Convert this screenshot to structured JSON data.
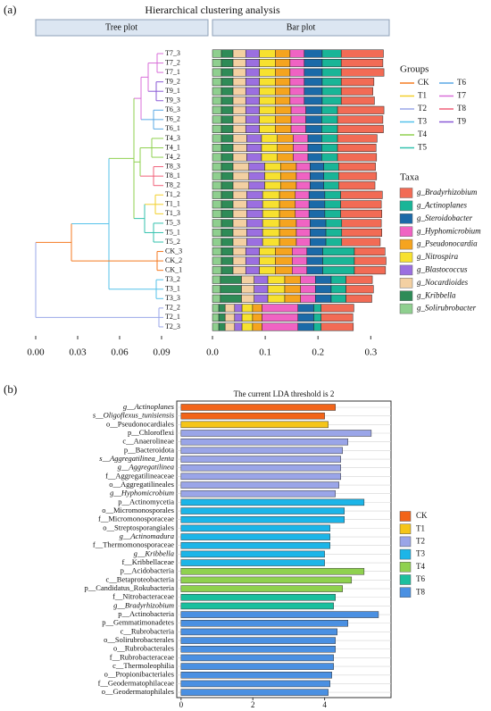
{
  "chart_data": [
    {
      "type": "stacked_barh",
      "panel": "(a)",
      "title": "Hierarchical clustering analysis",
      "tree_title": "Tree plot",
      "bar_title": "Bar plot",
      "categories": [
        "T7_3",
        "T7_2",
        "T7_1",
        "T9_2",
        "T9_1",
        "T9_3",
        "T6_3",
        "T6_2",
        "T6_1",
        "T4_3",
        "T4_1",
        "T4_2",
        "T8_3",
        "T8_1",
        "T8_2",
        "T1_2",
        "T1_1",
        "T1_3",
        "T5_3",
        "T5_1",
        "T5_2",
        "CK_3",
        "CK_2",
        "CK_1",
        "T3_2",
        "T3_1",
        "T3_3",
        "T2_2",
        "T2_1",
        "T2_3"
      ],
      "legend_title": "Taxa",
      "series": [
        {
          "name": "g_Bradyrhizobium",
          "color": "#f26b55",
          "values": [
            0.08,
            0.079,
            0.081,
            0.062,
            0.06,
            0.063,
            0.088,
            0.086,
            0.087,
            0.075,
            0.073,
            0.074,
            0.07,
            0.072,
            0.069,
            0.079,
            0.077,
            0.078,
            0.075,
            0.076,
            0.073,
            0.058,
            0.06,
            0.059,
            0.05,
            0.052,
            0.049,
            0.062,
            0.06,
            0.061
          ]
        },
        {
          "name": "g_Actinoplanes",
          "color": "#19b597",
          "values": [
            0.036,
            0.036,
            0.036,
            0.036,
            0.036,
            0.036,
            0.03,
            0.03,
            0.03,
            0.03,
            0.03,
            0.03,
            0.028,
            0.028,
            0.028,
            0.03,
            0.03,
            0.03,
            0.03,
            0.03,
            0.03,
            0.06,
            0.06,
            0.06,
            0.028,
            0.028,
            0.028,
            0.014,
            0.014,
            0.014
          ]
        },
        {
          "name": "g_Steroidobacter",
          "color": "#1b6aa8",
          "values": [
            0.034,
            0.034,
            0.034,
            0.034,
            0.034,
            0.034,
            0.03,
            0.03,
            0.03,
            0.026,
            0.026,
            0.026,
            0.026,
            0.026,
            0.026,
            0.03,
            0.03,
            0.03,
            0.03,
            0.03,
            0.03,
            0.03,
            0.03,
            0.03,
            0.03,
            0.03,
            0.03,
            0.03,
            0.03,
            0.03
          ]
        },
        {
          "name": "g_Hyphomicrobium",
          "color": "#f063c3",
          "values": [
            0.027,
            0.027,
            0.027,
            0.027,
            0.027,
            0.027,
            0.028,
            0.028,
            0.028,
            0.028,
            0.028,
            0.028,
            0.026,
            0.026,
            0.026,
            0.026,
            0.026,
            0.026,
            0.026,
            0.026,
            0.026,
            0.028,
            0.028,
            0.028,
            0.028,
            0.028,
            0.028,
            0.068,
            0.068,
            0.068
          ]
        },
        {
          "name": "g_Pseudonocardia",
          "color": "#f5a41f",
          "values": [
            0.028,
            0.028,
            0.028,
            0.028,
            0.028,
            0.028,
            0.03,
            0.03,
            0.03,
            0.03,
            0.03,
            0.03,
            0.03,
            0.03,
            0.03,
            0.03,
            0.03,
            0.03,
            0.032,
            0.032,
            0.032,
            0.032,
            0.032,
            0.032,
            0.03,
            0.03,
            0.03,
            0.018,
            0.018,
            0.018
          ]
        },
        {
          "name": "g_Nitrospira",
          "color": "#f7e12f",
          "values": [
            0.03,
            0.03,
            0.03,
            0.03,
            0.03,
            0.03,
            0.03,
            0.03,
            0.03,
            0.03,
            0.03,
            0.03,
            0.03,
            0.03,
            0.03,
            0.032,
            0.032,
            0.032,
            0.032,
            0.032,
            0.032,
            0.03,
            0.03,
            0.03,
            0.032,
            0.032,
            0.032,
            0.02,
            0.02,
            0.02
          ]
        },
        {
          "name": "g_Blastococcus",
          "color": "#9b6fe0",
          "values": [
            0.026,
            0.026,
            0.026,
            0.026,
            0.026,
            0.026,
            0.026,
            0.026,
            0.026,
            0.028,
            0.028,
            0.028,
            0.03,
            0.03,
            0.03,
            0.03,
            0.03,
            0.03,
            0.03,
            0.03,
            0.03,
            0.026,
            0.026,
            0.026,
            0.026,
            0.026,
            0.026,
            0.014,
            0.014,
            0.014
          ]
        },
        {
          "name": "g_Nocardioides",
          "color": "#f3d0a2",
          "values": [
            0.024,
            0.024,
            0.024,
            0.024,
            0.024,
            0.024,
            0.024,
            0.024,
            0.024,
            0.026,
            0.026,
            0.026,
            0.03,
            0.03,
            0.03,
            0.026,
            0.026,
            0.026,
            0.026,
            0.026,
            0.026,
            0.024,
            0.024,
            0.024,
            0.024,
            0.024,
            0.024,
            0.018,
            0.018,
            0.018
          ]
        },
        {
          "name": "g_Kribbella",
          "color": "#2e8b57",
          "values": [
            0.022,
            0.022,
            0.022,
            0.022,
            0.022,
            0.022,
            0.022,
            0.022,
            0.022,
            0.022,
            0.022,
            0.022,
            0.022,
            0.022,
            0.022,
            0.022,
            0.022,
            0.022,
            0.022,
            0.022,
            0.022,
            0.022,
            0.022,
            0.022,
            0.04,
            0.04,
            0.04,
            0.012,
            0.012,
            0.012
          ]
        },
        {
          "name": "g_Solirubrobacter",
          "color": "#8fcf8f",
          "values": [
            0.017,
            0.017,
            0.017,
            0.017,
            0.017,
            0.017,
            0.017,
            0.017,
            0.017,
            0.017,
            0.017,
            0.017,
            0.017,
            0.017,
            0.017,
            0.017,
            0.017,
            0.017,
            0.017,
            0.017,
            0.017,
            0.017,
            0.017,
            0.017,
            0.015,
            0.015,
            0.015,
            0.012,
            0.012,
            0.012
          ]
        }
      ],
      "xlim": [
        0,
        0.335
      ],
      "xticks": [
        {
          "value": 0,
          "label": "0.0"
        },
        0.1,
        0.2,
        0.3
      ],
      "tree_xlim": [
        0,
        0.0913
      ],
      "tree_xticks": [
        {
          "value": 0,
          "label": "0.00"
        },
        0.03,
        0.06,
        0.09
      ],
      "groups_title": "Groups",
      "groups": [
        {
          "name": "CK",
          "color": "#f47a20"
        },
        {
          "name": "T1",
          "color": "#f2cf2a"
        },
        {
          "name": "T2",
          "color": "#9aa7e8"
        },
        {
          "name": "T3",
          "color": "#55c2ea"
        },
        {
          "name": "T4",
          "color": "#8fd14f"
        },
        {
          "name": "T5",
          "color": "#33c2ae"
        },
        {
          "name": "T6",
          "color": "#5aa9e6"
        },
        {
          "name": "T7",
          "color": "#d86fd8"
        },
        {
          "name": "T8",
          "color": "#f0607a"
        },
        {
          "name": "T9",
          "color": "#8a5ad6"
        }
      ]
    },
    {
      "type": "barh",
      "panel": "(b)",
      "title": "The current LDA threshold is 2",
      "categories": [
        "g__Actinoplanes",
        "s__Oligoflexus_tunisiensis",
        "o__Pseudonocardiales",
        "p__Chloroflexi",
        "c__Anaerolineae",
        "p__Bacteroidota",
        "s__Aggregatilinea_lenta",
        "g__Aggregatilinea",
        "f__Aggregatilineaceae",
        "o__Aggregatilineales",
        "g__Hyphomicrobium",
        "p__Actinomycetia",
        "o__Micromonosporales",
        "f__Micromonosporaceae",
        "o__Streptosporangiales",
        "g__Actinomadura",
        "f__Thermomonosporaceae",
        "g__Kribbella",
        "f__Kribbellaceae",
        "p__Acidobacteria",
        "c__Betaproteobacteria",
        "p__Candidatus_Rokubacteria",
        "f__Nitrobacteraceae",
        "g__Bradyrhizobium",
        "p__Actinobacteria",
        "p__Gemmatimonadetes",
        "c__Rubrobacteria",
        "o__Solirubrobacterales",
        "o__Rubrobacterales",
        "f__Rubrobacteraceae",
        "c__Thermoleophilia",
        "o__Propionibacteriales",
        "f__Geodermatophilaceae",
        "o__Geodermatophilales"
      ],
      "series": [
        {
          "name": "CK",
          "color": "#f26419",
          "values": [
            4.3,
            4.0,
            null,
            null,
            null,
            null,
            null,
            null,
            null,
            null,
            null,
            null,
            null,
            null,
            null,
            null,
            null,
            null,
            null,
            null,
            null,
            null,
            null,
            null,
            null,
            null,
            null,
            null,
            null,
            null,
            null,
            null,
            null,
            null
          ]
        },
        {
          "name": "T1",
          "color": "#f5c518",
          "values": [
            null,
            null,
            4.1,
            null,
            null,
            null,
            null,
            null,
            null,
            null,
            null,
            null,
            null,
            null,
            null,
            null,
            null,
            null,
            null,
            null,
            null,
            null,
            null,
            null,
            null,
            null,
            null,
            null,
            null,
            null,
            null,
            null,
            null,
            null
          ]
        },
        {
          "name": "T2",
          "color": "#9aa5e8",
          "values": [
            null,
            null,
            null,
            5.3,
            4.65,
            4.5,
            4.45,
            4.45,
            4.45,
            4.4,
            4.3,
            null,
            null,
            null,
            null,
            null,
            null,
            null,
            null,
            null,
            null,
            null,
            null,
            null,
            null,
            null,
            null,
            null,
            null,
            null,
            null,
            null,
            null,
            null
          ]
        },
        {
          "name": "T3",
          "color": "#1cb5e8",
          "values": [
            null,
            null,
            null,
            null,
            null,
            null,
            null,
            null,
            null,
            null,
            null,
            5.1,
            4.55,
            4.55,
            4.15,
            4.15,
            4.15,
            4.0,
            4.0,
            null,
            null,
            null,
            null,
            null,
            null,
            null,
            null,
            null,
            null,
            null,
            null,
            null,
            null,
            null
          ]
        },
        {
          "name": "T4",
          "color": "#8fd14f",
          "values": [
            null,
            null,
            null,
            null,
            null,
            null,
            null,
            null,
            null,
            null,
            null,
            null,
            null,
            null,
            null,
            null,
            null,
            null,
            null,
            5.1,
            4.75,
            4.5,
            null,
            null,
            null,
            null,
            null,
            null,
            null,
            null,
            null,
            null,
            null,
            null
          ]
        },
        {
          "name": "T6",
          "color": "#1bbf9e",
          "values": [
            null,
            null,
            null,
            null,
            null,
            null,
            null,
            null,
            null,
            null,
            null,
            null,
            null,
            null,
            null,
            null,
            null,
            null,
            null,
            null,
            null,
            null,
            4.3,
            4.25,
            null,
            null,
            null,
            null,
            null,
            null,
            null,
            null,
            null,
            null
          ]
        },
        {
          "name": "T8",
          "color": "#4a90e2",
          "values": [
            null,
            null,
            null,
            null,
            null,
            null,
            null,
            null,
            null,
            null,
            null,
            null,
            null,
            null,
            null,
            null,
            null,
            null,
            null,
            null,
            null,
            null,
            null,
            null,
            5.5,
            4.65,
            4.35,
            4.3,
            4.3,
            4.25,
            4.25,
            4.2,
            4.15,
            4.1
          ]
        }
      ],
      "xlim": [
        -0.12,
        5.85
      ],
      "xticks": [
        0,
        2,
        4
      ],
      "grid": true
    }
  ]
}
